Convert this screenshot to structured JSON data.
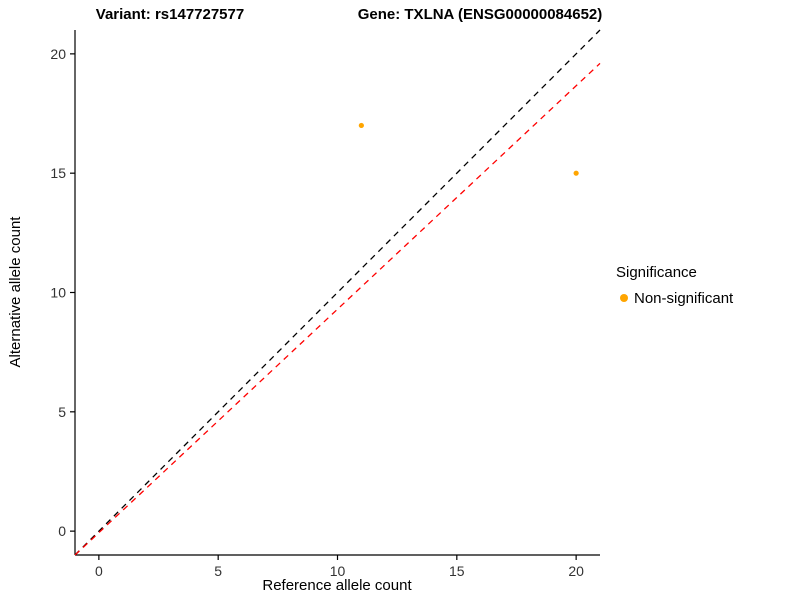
{
  "chart_data": {
    "type": "scatter",
    "title_left": "Variant: rs147727577",
    "title_right": "Gene: TXLNA (ENSG00000084652)",
    "xlabel": "Reference allele count",
    "ylabel": "Alternative allele count",
    "xlim": [
      -1,
      21
    ],
    "ylim": [
      -1,
      21
    ],
    "xticks": [
      0,
      5,
      10,
      15,
      20
    ],
    "yticks": [
      0,
      5,
      10,
      15,
      20
    ],
    "grid": false,
    "legend_position": "right",
    "axis_color": "#000000",
    "tick_color": "#333333",
    "point_color": "#FFA500",
    "point_radius": 2.6,
    "points": [
      {
        "x": 11,
        "y": 17,
        "series": "Non-significant"
      },
      {
        "x": 20,
        "y": 15,
        "series": "Non-significant"
      }
    ],
    "lines": [
      {
        "name": "identity-line",
        "color": "#000000",
        "dash": "6,5",
        "x1": -1,
        "y1": -1,
        "x2": 21,
        "y2": 21
      },
      {
        "name": "fit-line",
        "color": "#FF0000",
        "dash": "6,5",
        "x1": -1,
        "y1": -1,
        "x2": 21,
        "y2": 19.6
      }
    ],
    "legend": {
      "title": "Significance",
      "items": [
        {
          "label": "Non-significant",
          "color": "#FFA500"
        }
      ]
    }
  }
}
